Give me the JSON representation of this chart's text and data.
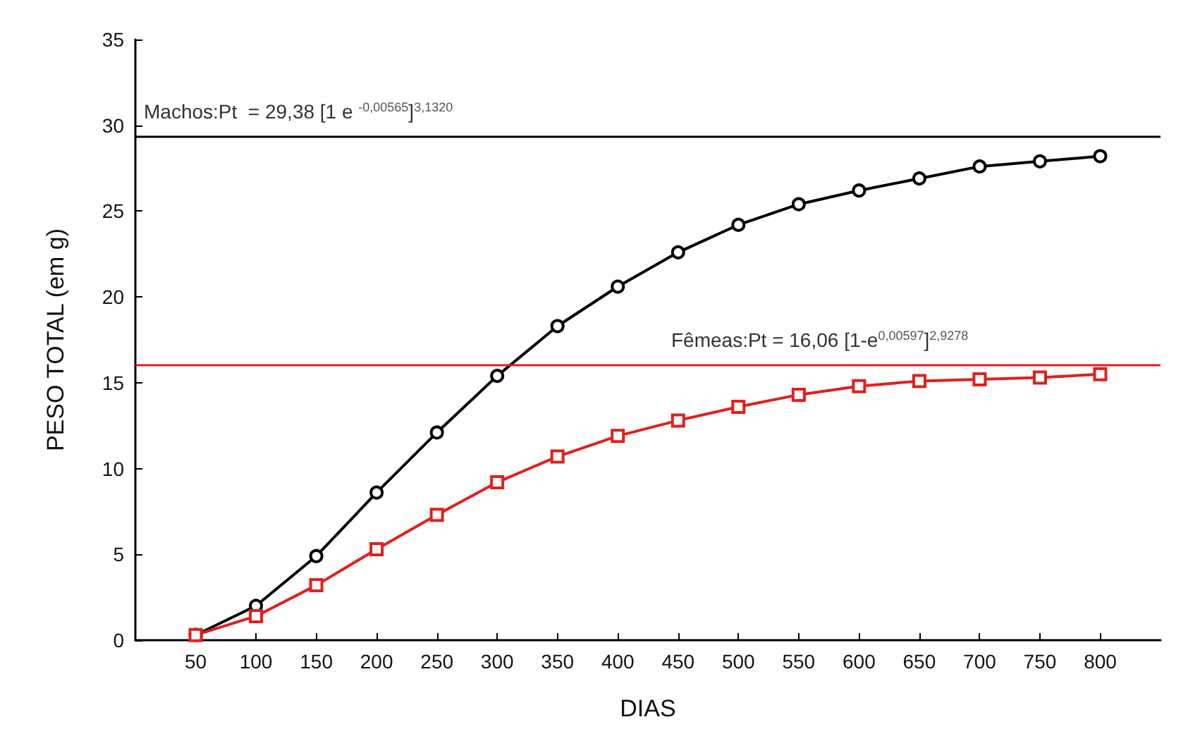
{
  "chart_data": {
    "type": "line",
    "xlabel": "DIAS",
    "ylabel": "PESO TOTAL (em g)",
    "x": [
      50,
      100,
      150,
      200,
      250,
      300,
      350,
      400,
      450,
      500,
      550,
      600,
      650,
      700,
      750,
      800
    ],
    "xlim": [
      0,
      850
    ],
    "xticks": [
      50,
      100,
      150,
      200,
      250,
      300,
      350,
      400,
      450,
      500,
      550,
      600,
      650,
      700,
      750,
      800
    ],
    "ylim": [
      0,
      35
    ],
    "yticks": [
      0,
      5,
      10,
      15,
      20,
      25,
      30,
      35
    ],
    "series": [
      {
        "color": "#000000",
        "marker": "circle",
        "values": [
          0.3,
          2.0,
          4.9,
          8.6,
          12.1,
          15.4,
          18.3,
          20.6,
          22.6,
          24.2,
          25.4,
          26.2,
          26.9,
          27.6,
          27.9,
          28.2
        ]
      },
      {
        "color": "#e0201b",
        "marker": "square",
        "values": [
          0.3,
          1.4,
          3.2,
          5.3,
          7.3,
          9.2,
          10.7,
          11.9,
          12.8,
          13.6,
          14.3,
          14.8,
          15.1,
          15.2,
          15.3,
          15.5
        ]
      }
    ],
    "ref_lines": [
      {
        "axis": "y",
        "value": 29.38,
        "color": "#000000",
        "label": "Machos:Pt  = 29,38 [1 e $^{-0,00565}$]$^{3,1320}$"
      },
      {
        "axis": "y",
        "value": 16.06,
        "color": "#e0201b",
        "label": "Fêmeas:Pt = 16,06 [1-e$^{0,00597}$]$^{2,9278}$"
      }
    ],
    "grid": false,
    "line_style": "solid"
  }
}
